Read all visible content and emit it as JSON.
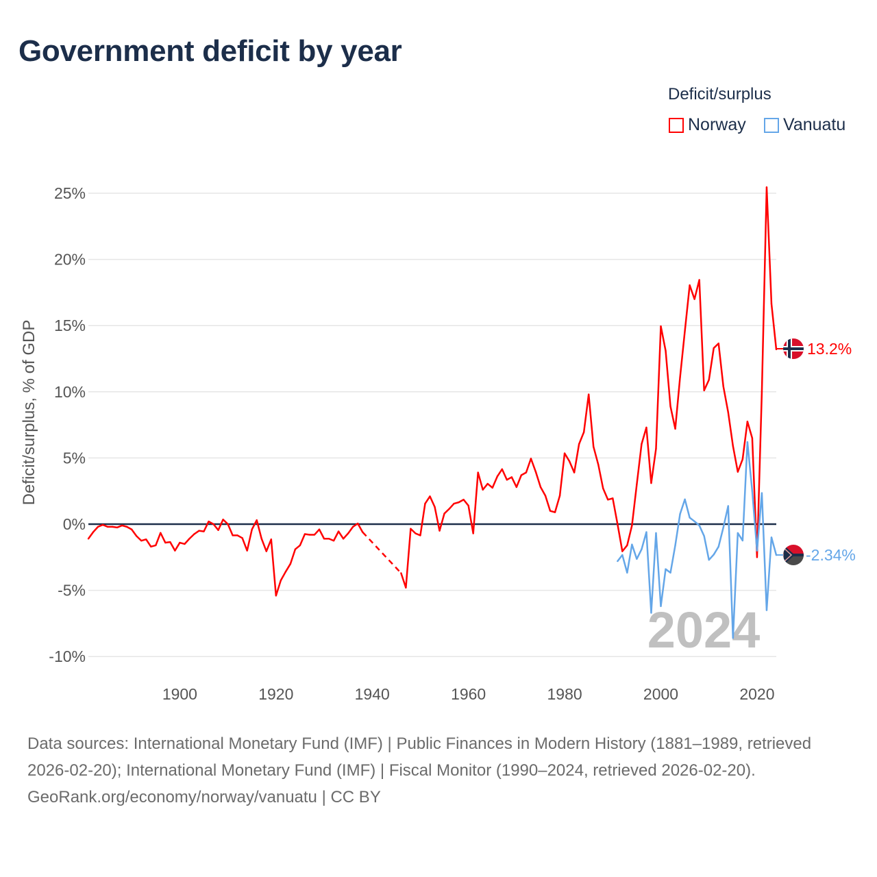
{
  "title": "Government deficit by year",
  "legend": {
    "title": "Deficit/surplus",
    "items": [
      {
        "name": "Norway",
        "color": "#ff0000"
      },
      {
        "name": "Vanuatu",
        "color": "#64a6e8"
      }
    ]
  },
  "watermark_year": "2024",
  "end_labels": {
    "norway": "13.2%",
    "vanuatu": "-2.34%"
  },
  "footer": {
    "sources": "Data sources: International Monetary Fund (IMF) | Public Finances in Modern History (1881–1989, retrieved 2026-02-20); International Monetary Fund (IMF) | Fiscal Monitor (1990–2024, retrieved 2026-02-20).",
    "credit": "GeoRank.org/economy/norway/vanuatu | CC BY"
  },
  "chart_data": {
    "type": "line",
    "title": "Government deficit by year",
    "xlabel": "",
    "ylabel": "Deficit/surplus, % of GDP",
    "xlim": [
      1881,
      2024
    ],
    "ylim": [
      -10,
      25
    ],
    "x_ticks": [
      1900,
      1920,
      1940,
      1960,
      1980,
      2000,
      2020
    ],
    "x_tick_labels": [
      "1900",
      "1920",
      "1940",
      "1960",
      "1980",
      "2000",
      "2020"
    ],
    "y_ticks": [
      -10,
      -5,
      0,
      5,
      10,
      15,
      20,
      25
    ],
    "y_tick_labels": [
      "-10%",
      "-5%",
      "0%",
      "5%",
      "10%",
      "15%",
      "20%",
      "25%"
    ],
    "grid": true,
    "legend_position": "top-right",
    "series": [
      {
        "name": "Norway",
        "color": "#ff0000",
        "start_year": 1881,
        "values": [
          -1.1,
          -0.6,
          -0.2,
          -0.05,
          -0.2,
          -0.2,
          -0.25,
          -0.1,
          -0.2,
          -0.4,
          -0.9,
          -1.25,
          -1.15,
          -1.7,
          -1.6,
          -0.66,
          -1.4,
          -1.35,
          -2.0,
          -1.4,
          -1.5,
          -1.1,
          -0.75,
          -0.5,
          -0.55,
          0.2,
          0.0,
          -0.45,
          0.35,
          0.0,
          -0.85,
          -0.85,
          -1.05,
          -2.0,
          -0.4,
          0.3,
          -1.1,
          -2.05,
          -1.15,
          -5.4,
          -4.25,
          -3.6,
          -3.0,
          -1.9,
          -1.6,
          -0.75,
          -0.8,
          -0.8,
          -0.4,
          -1.1,
          -1.1,
          -1.25,
          -0.55,
          -1.1,
          -0.7,
          -0.2,
          0.05,
          -0.6,
          null,
          null,
          null,
          null,
          null,
          null,
          null,
          -3.7,
          -4.8,
          -0.35,
          -0.7,
          -0.85,
          1.55,
          2.1,
          1.3,
          -0.5,
          0.8,
          1.15,
          1.55,
          1.65,
          1.85,
          1.4,
          -0.7,
          3.9,
          2.6,
          3.05,
          2.75,
          3.6,
          4.15,
          3.35,
          3.55,
          2.8,
          3.7,
          3.9,
          4.95,
          3.95,
          2.8,
          2.15,
          1.0,
          0.9,
          2.15,
          5.35,
          4.75,
          3.9,
          6.05,
          6.95,
          9.8,
          5.85,
          4.5,
          2.7,
          1.85,
          1.95,
          0.0,
          -2.05,
          -1.6,
          -0.1,
          3.0,
          6.05,
          7.3,
          3.1,
          5.7,
          14.95,
          13.1,
          8.9,
          7.2,
          11.1,
          14.6,
          18.05,
          17.0,
          18.45,
          10.1,
          10.9,
          13.3,
          13.65,
          10.4,
          8.45,
          5.9,
          3.95,
          4.9,
          7.75,
          6.5,
          -2.5,
          10.0,
          25.45,
          16.65,
          13.2
        ]
      },
      {
        "name": "Vanuatu",
        "color": "#64a6e8",
        "start_year": 1991,
        "values": [
          -2.8,
          -2.33,
          -3.67,
          -1.54,
          -2.63,
          -1.9,
          -0.6,
          -6.7,
          -0.67,
          -6.2,
          -3.4,
          -3.67,
          -1.6,
          0.77,
          1.87,
          0.49,
          0.21,
          -0.1,
          -0.9,
          -2.7,
          -2.3,
          -1.7,
          -0.25,
          1.37,
          -8.6,
          -0.67,
          -1.24,
          6.2,
          2.5,
          -2.0,
          2.35,
          -6.5,
          -1.0,
          -2.34
        ]
      }
    ]
  }
}
